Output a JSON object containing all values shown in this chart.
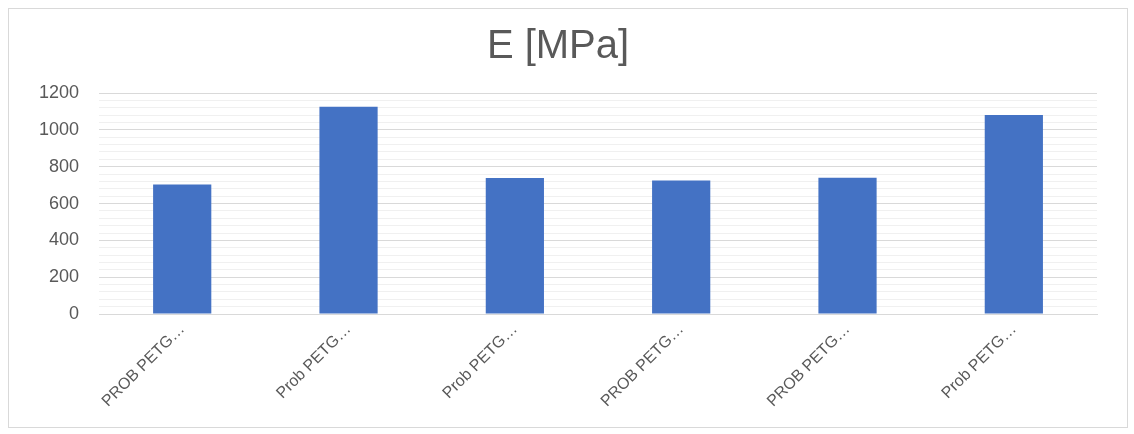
{
  "chart_data": {
    "type": "bar",
    "title": "E [MPa]",
    "categories": [
      "PROB PETG…",
      "Prob PETG…",
      "Prob PETG…",
      "PROB PETG…",
      "PROB PETG…",
      "Prob PETG…"
    ],
    "values": [
      704,
      1126,
      738,
      725,
      740,
      1080
    ],
    "color": "#4472c4",
    "ylim": [
      0,
      1200
    ],
    "yticks": [
      0,
      {
        "value": 40,
        "label": null
      },
      {
        "value": 80,
        "label": null
      },
      {
        "value": 120,
        "label": null
      },
      {
        "value": 160,
        "label": null
      },
      200,
      {
        "value": 240,
        "label": null
      },
      {
        "value": 280,
        "label": null
      },
      {
        "value": 320,
        "label": null
      },
      {
        "value": 360,
        "label": null
      },
      400,
      {
        "value": 440,
        "label": null
      },
      {
        "value": 480,
        "label": null
      },
      {
        "value": 520,
        "label": null
      },
      {
        "value": 560,
        "label": null
      },
      600,
      {
        "value": 640,
        "label": null
      },
      {
        "value": 680,
        "label": null
      },
      {
        "value": 720,
        "label": null
      },
      {
        "value": 760,
        "label": null
      },
      800,
      {
        "value": 840,
        "label": null
      },
      {
        "value": 880,
        "label": null
      },
      {
        "value": 920,
        "label": null
      },
      {
        "value": 960,
        "label": null
      },
      1000,
      {
        "value": 1040,
        "label": null
      },
      {
        "value": 1080,
        "label": null
      },
      {
        "value": 1120,
        "label": null
      },
      {
        "value": 1160,
        "label": null
      },
      1200
    ],
    "grid": "y"
  }
}
